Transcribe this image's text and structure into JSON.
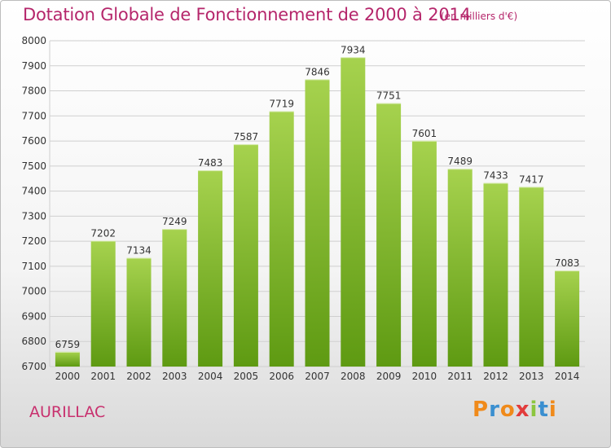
{
  "title": "Dotation Globale de Fonctionnement de 2000 à 2014",
  "subtitle": "(en milliers d'€)",
  "commune": "AURILLAC",
  "logo": {
    "letters": [
      "P",
      "r",
      "o",
      "x",
      "i",
      "t",
      "i"
    ],
    "colors": [
      "#f08a1a",
      "#3a8fd0",
      "#f08a1a",
      "#e23b3b",
      "#8cc63f",
      "#3a8fd0",
      "#f08a1a"
    ]
  },
  "chart_data": {
    "type": "bar",
    "categories": [
      "2000",
      "2001",
      "2002",
      "2003",
      "2004",
      "2005",
      "2006",
      "2007",
      "2008",
      "2009",
      "2010",
      "2011",
      "2012",
      "2013",
      "2014"
    ],
    "values": [
      6759,
      7202,
      7134,
      7249,
      7483,
      7587,
      7719,
      7846,
      7934,
      7751,
      7601,
      7489,
      7433,
      7417,
      7083
    ],
    "ylim": [
      6700,
      8000
    ],
    "yticks": [
      6700,
      6800,
      6900,
      7000,
      7100,
      7200,
      7300,
      7400,
      7500,
      7600,
      7700,
      7800,
      7900,
      8000
    ],
    "grid": true,
    "bar_color_top": "#a6d24e",
    "bar_color_bottom": "#5e9a12"
  }
}
